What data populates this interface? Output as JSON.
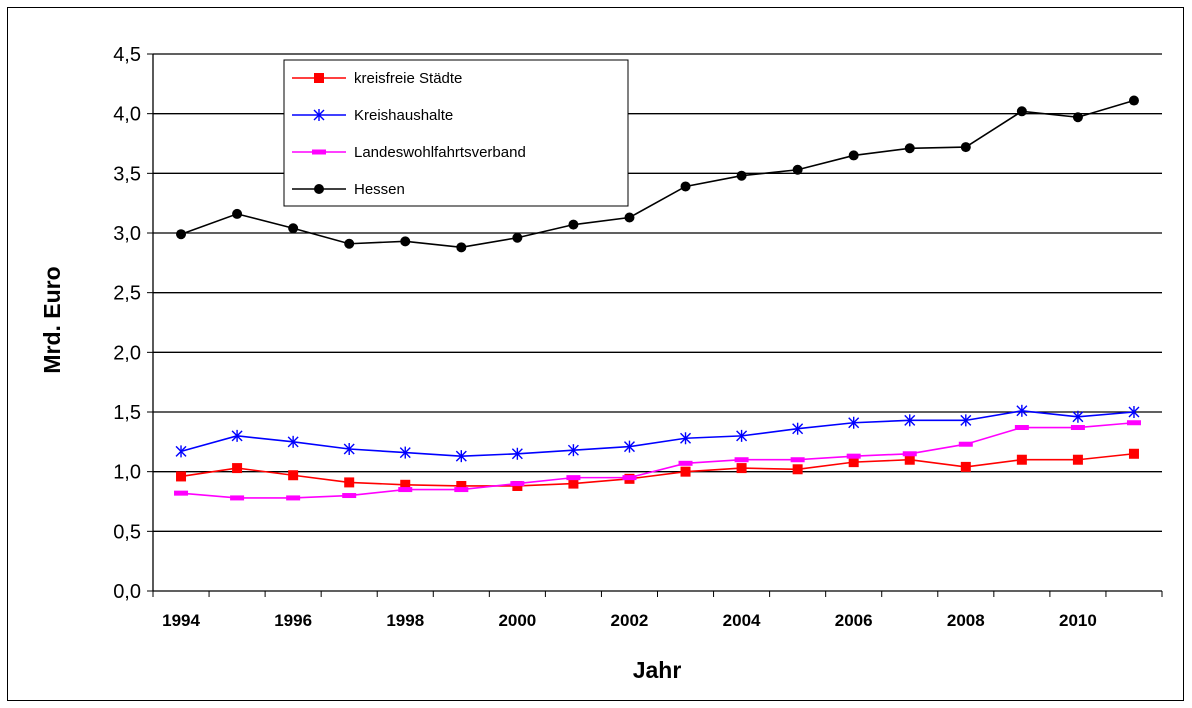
{
  "chart_data": {
    "type": "line",
    "title": "",
    "xlabel": "Jahr",
    "ylabel": "Mrd. Euro",
    "x": [
      1994,
      1995,
      1996,
      1997,
      1998,
      1999,
      2000,
      2001,
      2002,
      2003,
      2004,
      2005,
      2006,
      2007,
      2008,
      2009,
      2010,
      2011
    ],
    "x_ticks": [
      "1994",
      "1996",
      "1998",
      "2000",
      "2002",
      "2004",
      "2006",
      "2008",
      "2010"
    ],
    "y_ticks": [
      "0,0",
      "0,5",
      "1,0",
      "1,5",
      "2,0",
      "2,5",
      "3,0",
      "3,5",
      "4,0",
      "4,5"
    ],
    "ylim": [
      0,
      4.5
    ],
    "grid": true,
    "legend_position": "top-left",
    "series": [
      {
        "name": "kreisfreie Städte",
        "color": "#ff0000",
        "marker": "square",
        "values": [
          0.96,
          1.03,
          0.97,
          0.91,
          0.89,
          0.88,
          0.88,
          0.9,
          0.94,
          1.0,
          1.03,
          1.02,
          1.08,
          1.1,
          1.04,
          1.1,
          1.1,
          1.15
        ]
      },
      {
        "name": "Kreishaushalte",
        "color": "#0000ff",
        "marker": "star",
        "values": [
          1.17,
          1.3,
          1.25,
          1.19,
          1.16,
          1.13,
          1.15,
          1.18,
          1.21,
          1.28,
          1.3,
          1.36,
          1.41,
          1.43,
          1.43,
          1.51,
          1.46,
          1.5
        ]
      },
      {
        "name": "Landeswohlfahrtsverband",
        "color": "#ff00ff",
        "marker": "dash",
        "values": [
          0.82,
          0.78,
          0.78,
          0.8,
          0.85,
          0.85,
          0.9,
          0.95,
          0.95,
          1.07,
          1.1,
          1.1,
          1.13,
          1.15,
          1.23,
          1.37,
          1.37,
          1.41
        ]
      },
      {
        "name": "Hessen",
        "color": "#000000",
        "marker": "circle",
        "values": [
          2.99,
          3.16,
          3.04,
          2.91,
          2.93,
          2.88,
          2.96,
          3.07,
          3.13,
          3.39,
          3.48,
          3.53,
          3.65,
          3.71,
          3.72,
          4.02,
          3.97,
          4.11
        ]
      }
    ]
  }
}
